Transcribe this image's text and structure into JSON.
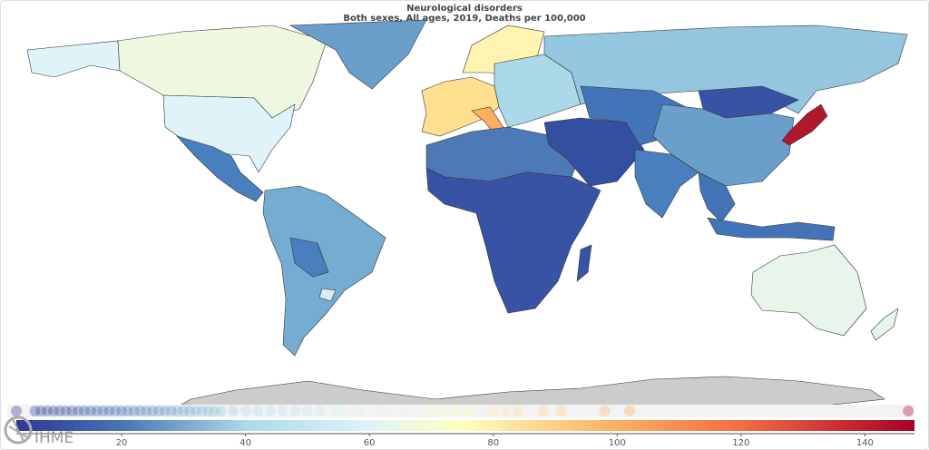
{
  "title": "Neurological disorders",
  "subtitle": "Both sexes, All ages, 2019, Deaths per 100,000",
  "logo_text": "IHME",
  "legend": {
    "min": 3,
    "max": 148,
    "ticks": [
      "20",
      "40",
      "60",
      "80",
      "100",
      "120",
      "140"
    ],
    "tick_values": [
      20,
      40,
      60,
      80,
      100,
      120,
      140
    ],
    "color_stops": [
      {
        "v": 3,
        "c": "#313695"
      },
      {
        "v": 20,
        "c": "#4575b4"
      },
      {
        "v": 40,
        "c": "#abd9e9"
      },
      {
        "v": 60,
        "c": "#e0f3f8"
      },
      {
        "v": 75,
        "c": "#ffffbf"
      },
      {
        "v": 100,
        "c": "#fdae61"
      },
      {
        "v": 120,
        "c": "#f46d43"
      },
      {
        "v": 148,
        "c": "#a50026"
      }
    ],
    "country_values": [
      3,
      6,
      7,
      8,
      9,
      10,
      11,
      12,
      13,
      14,
      15,
      16,
      17,
      18,
      19,
      20,
      21,
      22,
      23,
      24,
      25,
      26,
      27,
      28,
      29,
      30,
      31,
      32,
      33,
      34,
      35,
      36,
      38,
      40,
      42,
      44,
      46,
      48,
      50,
      52,
      55,
      58,
      62,
      66,
      70,
      72,
      74,
      76,
      80,
      82,
      84,
      88,
      91,
      98,
      102,
      147
    ]
  },
  "regions": [
    {
      "name": "alaska",
      "color": "#e0f3f8"
    },
    {
      "name": "canada",
      "color": "#eef7e0"
    },
    {
      "name": "usa",
      "color": "#e0f3f8"
    },
    {
      "name": "greenland",
      "color": "#6a9fcb"
    },
    {
      "name": "mexico-central-america",
      "color": "#4a7fbf"
    },
    {
      "name": "south-america",
      "color": "#74add1"
    },
    {
      "name": "bolivia-paraguay",
      "color": "#4a7fbf"
    },
    {
      "name": "uruguay",
      "color": "#d8ecf3"
    },
    {
      "name": "western-europe",
      "color": "#fee090"
    },
    {
      "name": "scandinavia",
      "color": "#fff3b0"
    },
    {
      "name": "italy",
      "color": "#fdae61"
    },
    {
      "name": "eastern-europe",
      "color": "#abd9e9"
    },
    {
      "name": "russia",
      "color": "#94c6df"
    },
    {
      "name": "north-africa",
      "color": "#4e79b7"
    },
    {
      "name": "sub-saharan-africa",
      "color": "#3953a4"
    },
    {
      "name": "madagascar",
      "color": "#3953a4"
    },
    {
      "name": "middle-east",
      "color": "#324fa0"
    },
    {
      "name": "central-asia",
      "color": "#4474b8"
    },
    {
      "name": "mongolia",
      "color": "#3953a4"
    },
    {
      "name": "china",
      "color": "#6a9fcb"
    },
    {
      "name": "india",
      "color": "#4a7fbf"
    },
    {
      "name": "southeast-asia",
      "color": "#4474b8"
    },
    {
      "name": "indonesia",
      "color": "#4474b8"
    },
    {
      "name": "japan",
      "color": "#b2182b"
    },
    {
      "name": "australia",
      "color": "#e8f5ea"
    },
    {
      "name": "new-zealand",
      "color": "#e8f5ea"
    },
    {
      "name": "antarctica",
      "color": "#cccccc"
    }
  ]
}
